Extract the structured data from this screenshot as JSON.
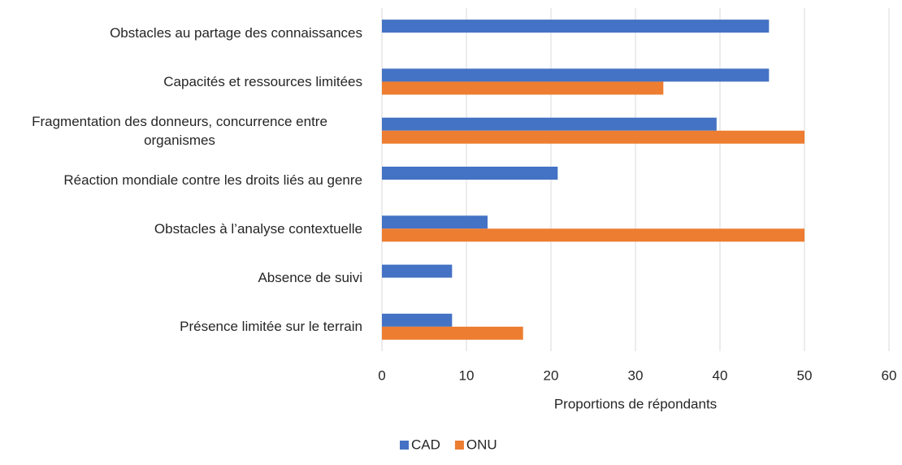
{
  "chart_data": {
    "type": "hbar",
    "x_label": "Proportions de répondants",
    "categories": [
      "Obstacles au partage des connaissances",
      "Capacités et ressources limitées",
      "Fragmentation des donneurs, concurrence entre organismes",
      "Réaction mondiale contre les droits liés au genre",
      "Obstacles à l’analyse contextuelle",
      "Absence de suivi",
      "Présence limitée sur le terrain"
    ],
    "series": [
      {
        "name": "CAD",
        "color": "#4472c4",
        "values": [
          45.8,
          45.8,
          39.6,
          20.8,
          12.5,
          8.3,
          8.3
        ]
      },
      {
        "name": "ONU",
        "color": "#ed7d31",
        "values": [
          null,
          33.3,
          50,
          null,
          50,
          null,
          16.7
        ]
      }
    ],
    "xlim": [
      0,
      60
    ],
    "xticks": [
      0,
      10,
      20,
      30,
      40,
      50,
      60
    ],
    "grid": true,
    "legend": "bottom"
  }
}
